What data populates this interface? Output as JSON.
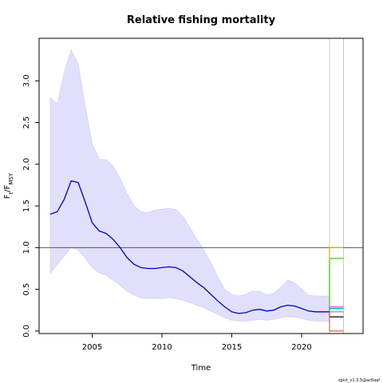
{
  "chart_data": {
    "type": "line",
    "title": "Relative fishing mortality",
    "xlabel": "Time",
    "ylabel": "F_t/F_MSY",
    "ylabel_parts": {
      "base": "F",
      "sub1": "t",
      "slash": "/F",
      "sub2": "MSY"
    },
    "credit": "spict_v1.3.5@ac6aaf",
    "xlim": [
      2001.2,
      2024.4
    ],
    "ylim": [
      -0.03,
      3.51
    ],
    "x_ticks": [
      2005,
      2010,
      2015,
      2020
    ],
    "x_tick_labels": [
      "2005",
      "2010",
      "2015",
      "2020"
    ],
    "y_ticks": [
      0.0,
      0.5,
      1.0,
      1.5,
      2.0,
      2.5,
      3.0
    ],
    "y_tick_labels": [
      "0.0",
      "0.5",
      "1.0",
      "1.5",
      "2.0",
      "2.5",
      "3.0"
    ],
    "reference_line_y": 1.0,
    "vertical_lines_x": [
      2022.0,
      2023.0
    ],
    "colors": {
      "estimate": "#0000cc",
      "ci_band": "#e0e0fc",
      "ci_band_edge": "#c8c8f8",
      "reference": "#555555",
      "vlines": "#c8c8c8"
    },
    "estimate": {
      "x": [
        2002.0,
        2002.5,
        2003.0,
        2003.5,
        2004.0,
        2004.5,
        2005.0,
        2005.5,
        2006.0,
        2006.5,
        2007.0,
        2007.5,
        2008.0,
        2008.5,
        2009.0,
        2009.5,
        2010.0,
        2010.5,
        2011.0,
        2011.5,
        2012.0,
        2012.5,
        2013.0,
        2013.5,
        2014.0,
        2014.5,
        2015.0,
        2015.5,
        2016.0,
        2016.5,
        2017.0,
        2017.5,
        2018.0,
        2018.5,
        2019.0,
        2019.5,
        2020.0,
        2020.5,
        2021.0,
        2021.5,
        2022.0
      ],
      "y": [
        1.4,
        1.43,
        1.58,
        1.8,
        1.78,
        1.55,
        1.3,
        1.2,
        1.17,
        1.1,
        1.0,
        0.88,
        0.8,
        0.76,
        0.75,
        0.75,
        0.76,
        0.77,
        0.76,
        0.72,
        0.65,
        0.58,
        0.52,
        0.44,
        0.36,
        0.29,
        0.23,
        0.21,
        0.22,
        0.25,
        0.26,
        0.24,
        0.25,
        0.29,
        0.31,
        0.3,
        0.27,
        0.24,
        0.23,
        0.23,
        0.23
      ]
    },
    "ci_upper": {
      "x": [
        2002.0,
        2002.5,
        2003.0,
        2003.5,
        2004.0,
        2004.5,
        2005.0,
        2005.5,
        2006.0,
        2006.5,
        2007.0,
        2007.5,
        2008.0,
        2008.5,
        2009.0,
        2009.5,
        2010.0,
        2010.5,
        2011.0,
        2011.5,
        2012.0,
        2012.5,
        2013.0,
        2013.5,
        2014.0,
        2014.5,
        2015.0,
        2015.5,
        2016.0,
        2016.5,
        2017.0,
        2017.5,
        2018.0,
        2018.5,
        2019.0,
        2019.5,
        2020.0,
        2020.5,
        2021.0,
        2021.5,
        2022.0
      ],
      "y": [
        2.8,
        2.72,
        3.1,
        3.37,
        3.2,
        2.7,
        2.25,
        2.06,
        2.05,
        1.98,
        1.83,
        1.65,
        1.5,
        1.43,
        1.42,
        1.45,
        1.46,
        1.47,
        1.46,
        1.37,
        1.24,
        1.1,
        0.97,
        0.82,
        0.65,
        0.5,
        0.44,
        0.42,
        0.44,
        0.48,
        0.47,
        0.43,
        0.45,
        0.52,
        0.61,
        0.58,
        0.5,
        0.43,
        0.42,
        0.42,
        0.42
      ]
    },
    "ci_lower": {
      "x": [
        2002.0,
        2002.5,
        2003.0,
        2003.5,
        2004.0,
        2004.5,
        2005.0,
        2005.5,
        2006.0,
        2006.5,
        2007.0,
        2007.5,
        2008.0,
        2008.5,
        2009.0,
        2009.5,
        2010.0,
        2010.5,
        2011.0,
        2011.5,
        2012.0,
        2012.5,
        2013.0,
        2013.5,
        2014.0,
        2014.5,
        2015.0,
        2015.5,
        2016.0,
        2016.5,
        2017.0,
        2017.5,
        2018.0,
        2018.5,
        2019.0,
        2019.5,
        2020.0,
        2020.5,
        2021.0,
        2021.5,
        2022.0
      ],
      "y": [
        0.69,
        0.8,
        0.9,
        1.0,
        0.97,
        0.88,
        0.76,
        0.7,
        0.67,
        0.61,
        0.55,
        0.48,
        0.43,
        0.4,
        0.39,
        0.39,
        0.39,
        0.4,
        0.39,
        0.37,
        0.34,
        0.31,
        0.28,
        0.24,
        0.2,
        0.16,
        0.13,
        0.12,
        0.12,
        0.13,
        0.14,
        0.13,
        0.14,
        0.16,
        0.17,
        0.17,
        0.15,
        0.13,
        0.12,
        0.12,
        0.12
      ]
    },
    "forecast_start_x": 2022.0,
    "forecast_end_x": 2023.0,
    "scenarios": [
      {
        "y": 1.0,
        "color": "#e6a800"
      },
      {
        "y": 0.87,
        "color": "#22dd00"
      },
      {
        "y": 0.29,
        "color": "#dd44dd"
      },
      {
        "y": 0.27,
        "color": "#00aacc"
      },
      {
        "y": 0.23,
        "color": "#888888"
      },
      {
        "y": 0.17,
        "color": "#000000"
      },
      {
        "y": 0.0,
        "color": "#e06040"
      }
    ]
  }
}
